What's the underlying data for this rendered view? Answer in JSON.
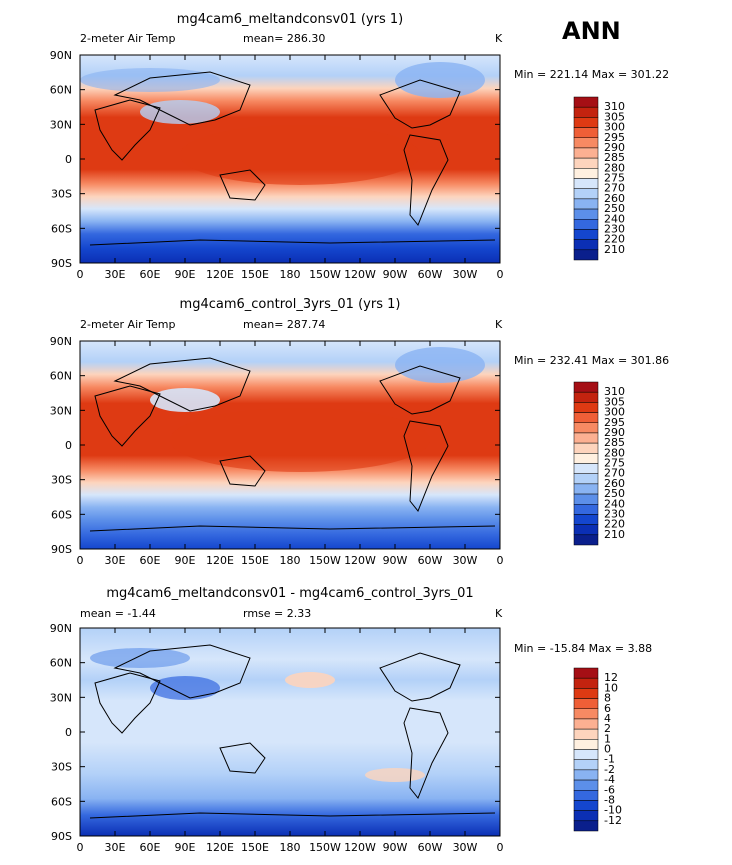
{
  "season": "ANN",
  "lon_ticks": [
    "0",
    "30E",
    "60E",
    "90E",
    "120E",
    "150E",
    "180",
    "150W",
    "120W",
    "90W",
    "60W",
    "30W",
    "0"
  ],
  "lat_ticks": [
    "90N",
    "60N",
    "30N",
    "0",
    "30S",
    "60S",
    "90S"
  ],
  "chart_data": [
    {
      "type": "heatmap",
      "title": "mg4cam6_meltandconsv01 (yrs 1)",
      "left_label": "2-meter Air Temp",
      "center_label": "mean= 286.30",
      "right_label": "K",
      "stats": "Min = 221.14 Max = 301.22",
      "min": 221.14,
      "max": 301.22,
      "mean": 286.3,
      "levels": [
        "310",
        "305",
        "300",
        "295",
        "290",
        "285",
        "280",
        "275",
        "270",
        "260",
        "250",
        "240",
        "230",
        "220",
        "210"
      ],
      "colors": [
        "#a50f15",
        "#c3230f",
        "#de3a13",
        "#ef5f37",
        "#f78a63",
        "#fcb092",
        "#fdd4bd",
        "#fff0e0",
        "#d6e6fb",
        "#b3d1f8",
        "#89b3f2",
        "#5c8fe9",
        "#3468df",
        "#1446ce",
        "#0b2fb4",
        "#0a1f8c"
      ]
    },
    {
      "type": "heatmap",
      "title": "mg4cam6_control_3yrs_01 (yrs 1)",
      "left_label": "2-meter Air Temp",
      "center_label": "mean= 287.74",
      "right_label": "K",
      "stats": "Min = 232.41 Max = 301.86",
      "min": 232.41,
      "max": 301.86,
      "mean": 287.74,
      "levels": [
        "310",
        "305",
        "300",
        "295",
        "290",
        "285",
        "280",
        "275",
        "270",
        "260",
        "250",
        "240",
        "230",
        "220",
        "210"
      ],
      "colors": [
        "#a50f15",
        "#c3230f",
        "#de3a13",
        "#ef5f37",
        "#f78a63",
        "#fcb092",
        "#fdd4bd",
        "#fff0e0",
        "#d6e6fb",
        "#b3d1f8",
        "#89b3f2",
        "#5c8fe9",
        "#3468df",
        "#1446ce",
        "#0b2fb4",
        "#0a1f8c"
      ]
    },
    {
      "type": "heatmap",
      "title": "mg4cam6_meltandconsv01 - mg4cam6_control_3yrs_01",
      "left_label": "mean = -1.44",
      "center_label": "rmse = 2.33",
      "right_label": "K",
      "stats": "Min = -15.84 Max = 3.88",
      "min": -15.84,
      "max": 3.88,
      "mean": -1.44,
      "rmse": 2.33,
      "levels": [
        "12",
        "10",
        "8",
        "6",
        "4",
        "2",
        "1",
        "0",
        "-1",
        "-2",
        "-4",
        "-6",
        "-8",
        "-10",
        "-12"
      ],
      "colors": [
        "#a50f15",
        "#c3230f",
        "#de3a13",
        "#ef5f37",
        "#f78a63",
        "#fcb092",
        "#fdd4bd",
        "#fff0e0",
        "#d6e6fb",
        "#b3d1f8",
        "#89b3f2",
        "#5c8fe9",
        "#3468df",
        "#1446ce",
        "#0b2fb4",
        "#0a1f8c"
      ]
    }
  ]
}
